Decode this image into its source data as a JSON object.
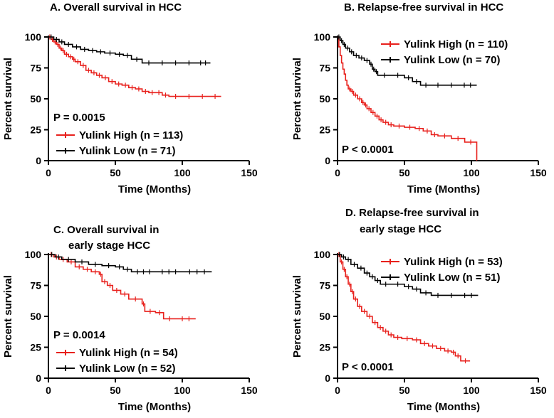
{
  "colors": {
    "high": "#e8201c",
    "low": "#000000"
  },
  "chart_data": [
    {
      "id": "A",
      "type": "line",
      "title_lines": [
        "A. Overall survival in HCC"
      ],
      "xlabel": "Time (Months)",
      "ylabel": "Percent survival",
      "xlim": [
        0,
        150
      ],
      "ylim": [
        0,
        100
      ],
      "xticks": [
        "0",
        "50",
        "100",
        "150"
      ],
      "yticks": [
        "0",
        "25",
        "50",
        "75",
        "100"
      ],
      "stat": "P = 0.0015",
      "series": [
        {
          "name": "Yulink High (n = 113)",
          "color": "high",
          "points": [
            [
              0,
              100
            ],
            [
              2,
              98
            ],
            [
              4,
              96
            ],
            [
              6,
              94
            ],
            [
              8,
              91
            ],
            [
              10,
              89
            ],
            [
              12,
              86
            ],
            [
              15,
              84
            ],
            [
              18,
              82
            ],
            [
              20,
              80
            ],
            [
              24,
              77
            ],
            [
              28,
              73
            ],
            [
              32,
              71
            ],
            [
              36,
              69
            ],
            [
              40,
              67
            ],
            [
              45,
              64
            ],
            [
              50,
              62
            ],
            [
              55,
              61
            ],
            [
              60,
              59
            ],
            [
              65,
              58
            ],
            [
              70,
              56
            ],
            [
              75,
              55
            ],
            [
              80,
              55
            ],
            [
              85,
              53
            ],
            [
              90,
              52
            ],
            [
              100,
              52
            ],
            [
              110,
              52
            ],
            [
              120,
              52
            ],
            [
              129,
              52
            ]
          ]
        },
        {
          "name": "Yulink Low (n = 71)",
          "color": "low",
          "points": [
            [
              0,
              100
            ],
            [
              4,
              98
            ],
            [
              8,
              96
            ],
            [
              12,
              94
            ],
            [
              18,
              92
            ],
            [
              24,
              90
            ],
            [
              30,
              89
            ],
            [
              36,
              88
            ],
            [
              42,
              87
            ],
            [
              50,
              86
            ],
            [
              56,
              85
            ],
            [
              62,
              82
            ],
            [
              70,
              79
            ],
            [
              80,
              79
            ],
            [
              90,
              79
            ],
            [
              100,
              79
            ],
            [
              110,
              79
            ],
            [
              121,
              79
            ]
          ]
        }
      ]
    },
    {
      "id": "B",
      "type": "line",
      "title_lines": [
        "B. Relapse-free survival in HCC"
      ],
      "xlabel": "Time (Months)",
      "ylabel": "Percent survival",
      "xlim": [
        0,
        150
      ],
      "ylim": [
        0,
        100
      ],
      "xticks": [
        "0",
        "50",
        "100",
        "150"
      ],
      "yticks": [
        "0",
        "25",
        "50",
        "75",
        "100"
      ],
      "stat": "P < 0.0001",
      "series": [
        {
          "name": "Yulink High (n = 110)",
          "color": "high",
          "points": [
            [
              0,
              100
            ],
            [
              1,
              92
            ],
            [
              2,
              85
            ],
            [
              3,
              79
            ],
            [
              4,
              74
            ],
            [
              5,
              70
            ],
            [
              6,
              65
            ],
            [
              7,
              61
            ],
            [
              8,
              58
            ],
            [
              10,
              56
            ],
            [
              12,
              53
            ],
            [
              15,
              50
            ],
            [
              18,
              47
            ],
            [
              20,
              45
            ],
            [
              22,
              42
            ],
            [
              25,
              39
            ],
            [
              28,
              36
            ],
            [
              31,
              33
            ],
            [
              34,
              31
            ],
            [
              38,
              29
            ],
            [
              42,
              28
            ],
            [
              50,
              27
            ],
            [
              58,
              26
            ],
            [
              64,
              24
            ],
            [
              70,
              21
            ],
            [
              75,
              20
            ],
            [
              85,
              18
            ],
            [
              95,
              15
            ],
            [
              104,
              15
            ],
            [
              104,
              0
            ]
          ]
        },
        {
          "name": "Yulink Low (n = 70)",
          "color": "low",
          "points": [
            [
              0,
              100
            ],
            [
              2,
              97
            ],
            [
              4,
              94
            ],
            [
              6,
              91
            ],
            [
              9,
              88
            ],
            [
              12,
              85
            ],
            [
              16,
              83
            ],
            [
              20,
              81
            ],
            [
              24,
              78
            ],
            [
              26,
              74
            ],
            [
              28,
              72
            ],
            [
              30,
              69
            ],
            [
              40,
              69
            ],
            [
              50,
              67
            ],
            [
              56,
              64
            ],
            [
              62,
              61
            ],
            [
              70,
              61
            ],
            [
              80,
              61
            ],
            [
              90,
              61
            ],
            [
              104,
              61
            ]
          ]
        }
      ]
    },
    {
      "id": "C",
      "type": "line",
      "title_lines": [
        "C. Overall survival in",
        "early stage HCC"
      ],
      "xlabel": "Time (Months)",
      "ylabel": "Percent survival",
      "xlim": [
        0,
        150
      ],
      "ylim": [
        0,
        100
      ],
      "xticks": [
        "0",
        "50",
        "100",
        "150"
      ],
      "yticks": [
        "0",
        "25",
        "50",
        "75",
        "100"
      ],
      "stat": "P = 0.0014",
      "series": [
        {
          "name": "Yulink High (n = 54)",
          "color": "high",
          "points": [
            [
              0,
              100
            ],
            [
              4,
              98
            ],
            [
              8,
              96
            ],
            [
              14,
              94
            ],
            [
              20,
              90
            ],
            [
              26,
              88
            ],
            [
              32,
              86
            ],
            [
              38,
              84
            ],
            [
              40,
              78
            ],
            [
              44,
              75
            ],
            [
              48,
              71
            ],
            [
              54,
              68
            ],
            [
              60,
              64
            ],
            [
              70,
              60
            ],
            [
              72,
              54
            ],
            [
              80,
              53
            ],
            [
              86,
              48
            ],
            [
              95,
              48
            ],
            [
              110,
              48
            ]
          ]
        },
        {
          "name": "Yulink Low (n = 52)",
          "color": "low",
          "points": [
            [
              0,
              100
            ],
            [
              5,
              98
            ],
            [
              10,
              96
            ],
            [
              20,
              94
            ],
            [
              30,
              92
            ],
            [
              40,
              91
            ],
            [
              50,
              90
            ],
            [
              56,
              88
            ],
            [
              62,
              86
            ],
            [
              80,
              86
            ],
            [
              100,
              86
            ],
            [
              122,
              86
            ]
          ]
        }
      ]
    },
    {
      "id": "D",
      "type": "line",
      "title_lines": [
        "D. Relapse-free survival in",
        "early stage HCC"
      ],
      "xlabel": "Time (Months)",
      "ylabel": "Percent survival",
      "xlim": [
        0,
        150
      ],
      "ylim": [
        0,
        100
      ],
      "xticks": [
        "0",
        "50",
        "100",
        "150"
      ],
      "yticks": [
        "0",
        "25",
        "50",
        "75",
        "100"
      ],
      "stat": "P < 0.0001",
      "series": [
        {
          "name": "Yulink High (n = 53)",
          "color": "high",
          "points": [
            [
              0,
              100
            ],
            [
              2,
              94
            ],
            [
              4,
              88
            ],
            [
              6,
              82
            ],
            [
              8,
              76
            ],
            [
              10,
              70
            ],
            [
              12,
              64
            ],
            [
              15,
              58
            ],
            [
              18,
              54
            ],
            [
              22,
              50
            ],
            [
              26,
              45
            ],
            [
              30,
              41
            ],
            [
              34,
              38
            ],
            [
              38,
              35
            ],
            [
              42,
              33
            ],
            [
              48,
              32
            ],
            [
              56,
              31
            ],
            [
              62,
              28
            ],
            [
              68,
              26
            ],
            [
              74,
              24
            ],
            [
              80,
              22
            ],
            [
              85,
              21
            ],
            [
              88,
              18
            ],
            [
              92,
              14
            ],
            [
              99,
              14
            ]
          ]
        },
        {
          "name": "Yulink Low (n = 51)",
          "color": "low",
          "points": [
            [
              0,
              100
            ],
            [
              3,
              98
            ],
            [
              6,
              96
            ],
            [
              10,
              92
            ],
            [
              15,
              89
            ],
            [
              20,
              85
            ],
            [
              24,
              82
            ],
            [
              28,
              79
            ],
            [
              32,
              76
            ],
            [
              40,
              76
            ],
            [
              50,
              74
            ],
            [
              56,
              72
            ],
            [
              62,
              69
            ],
            [
              70,
              67
            ],
            [
              80,
              67
            ],
            [
              90,
              67
            ],
            [
              105,
              67
            ]
          ]
        }
      ]
    }
  ]
}
